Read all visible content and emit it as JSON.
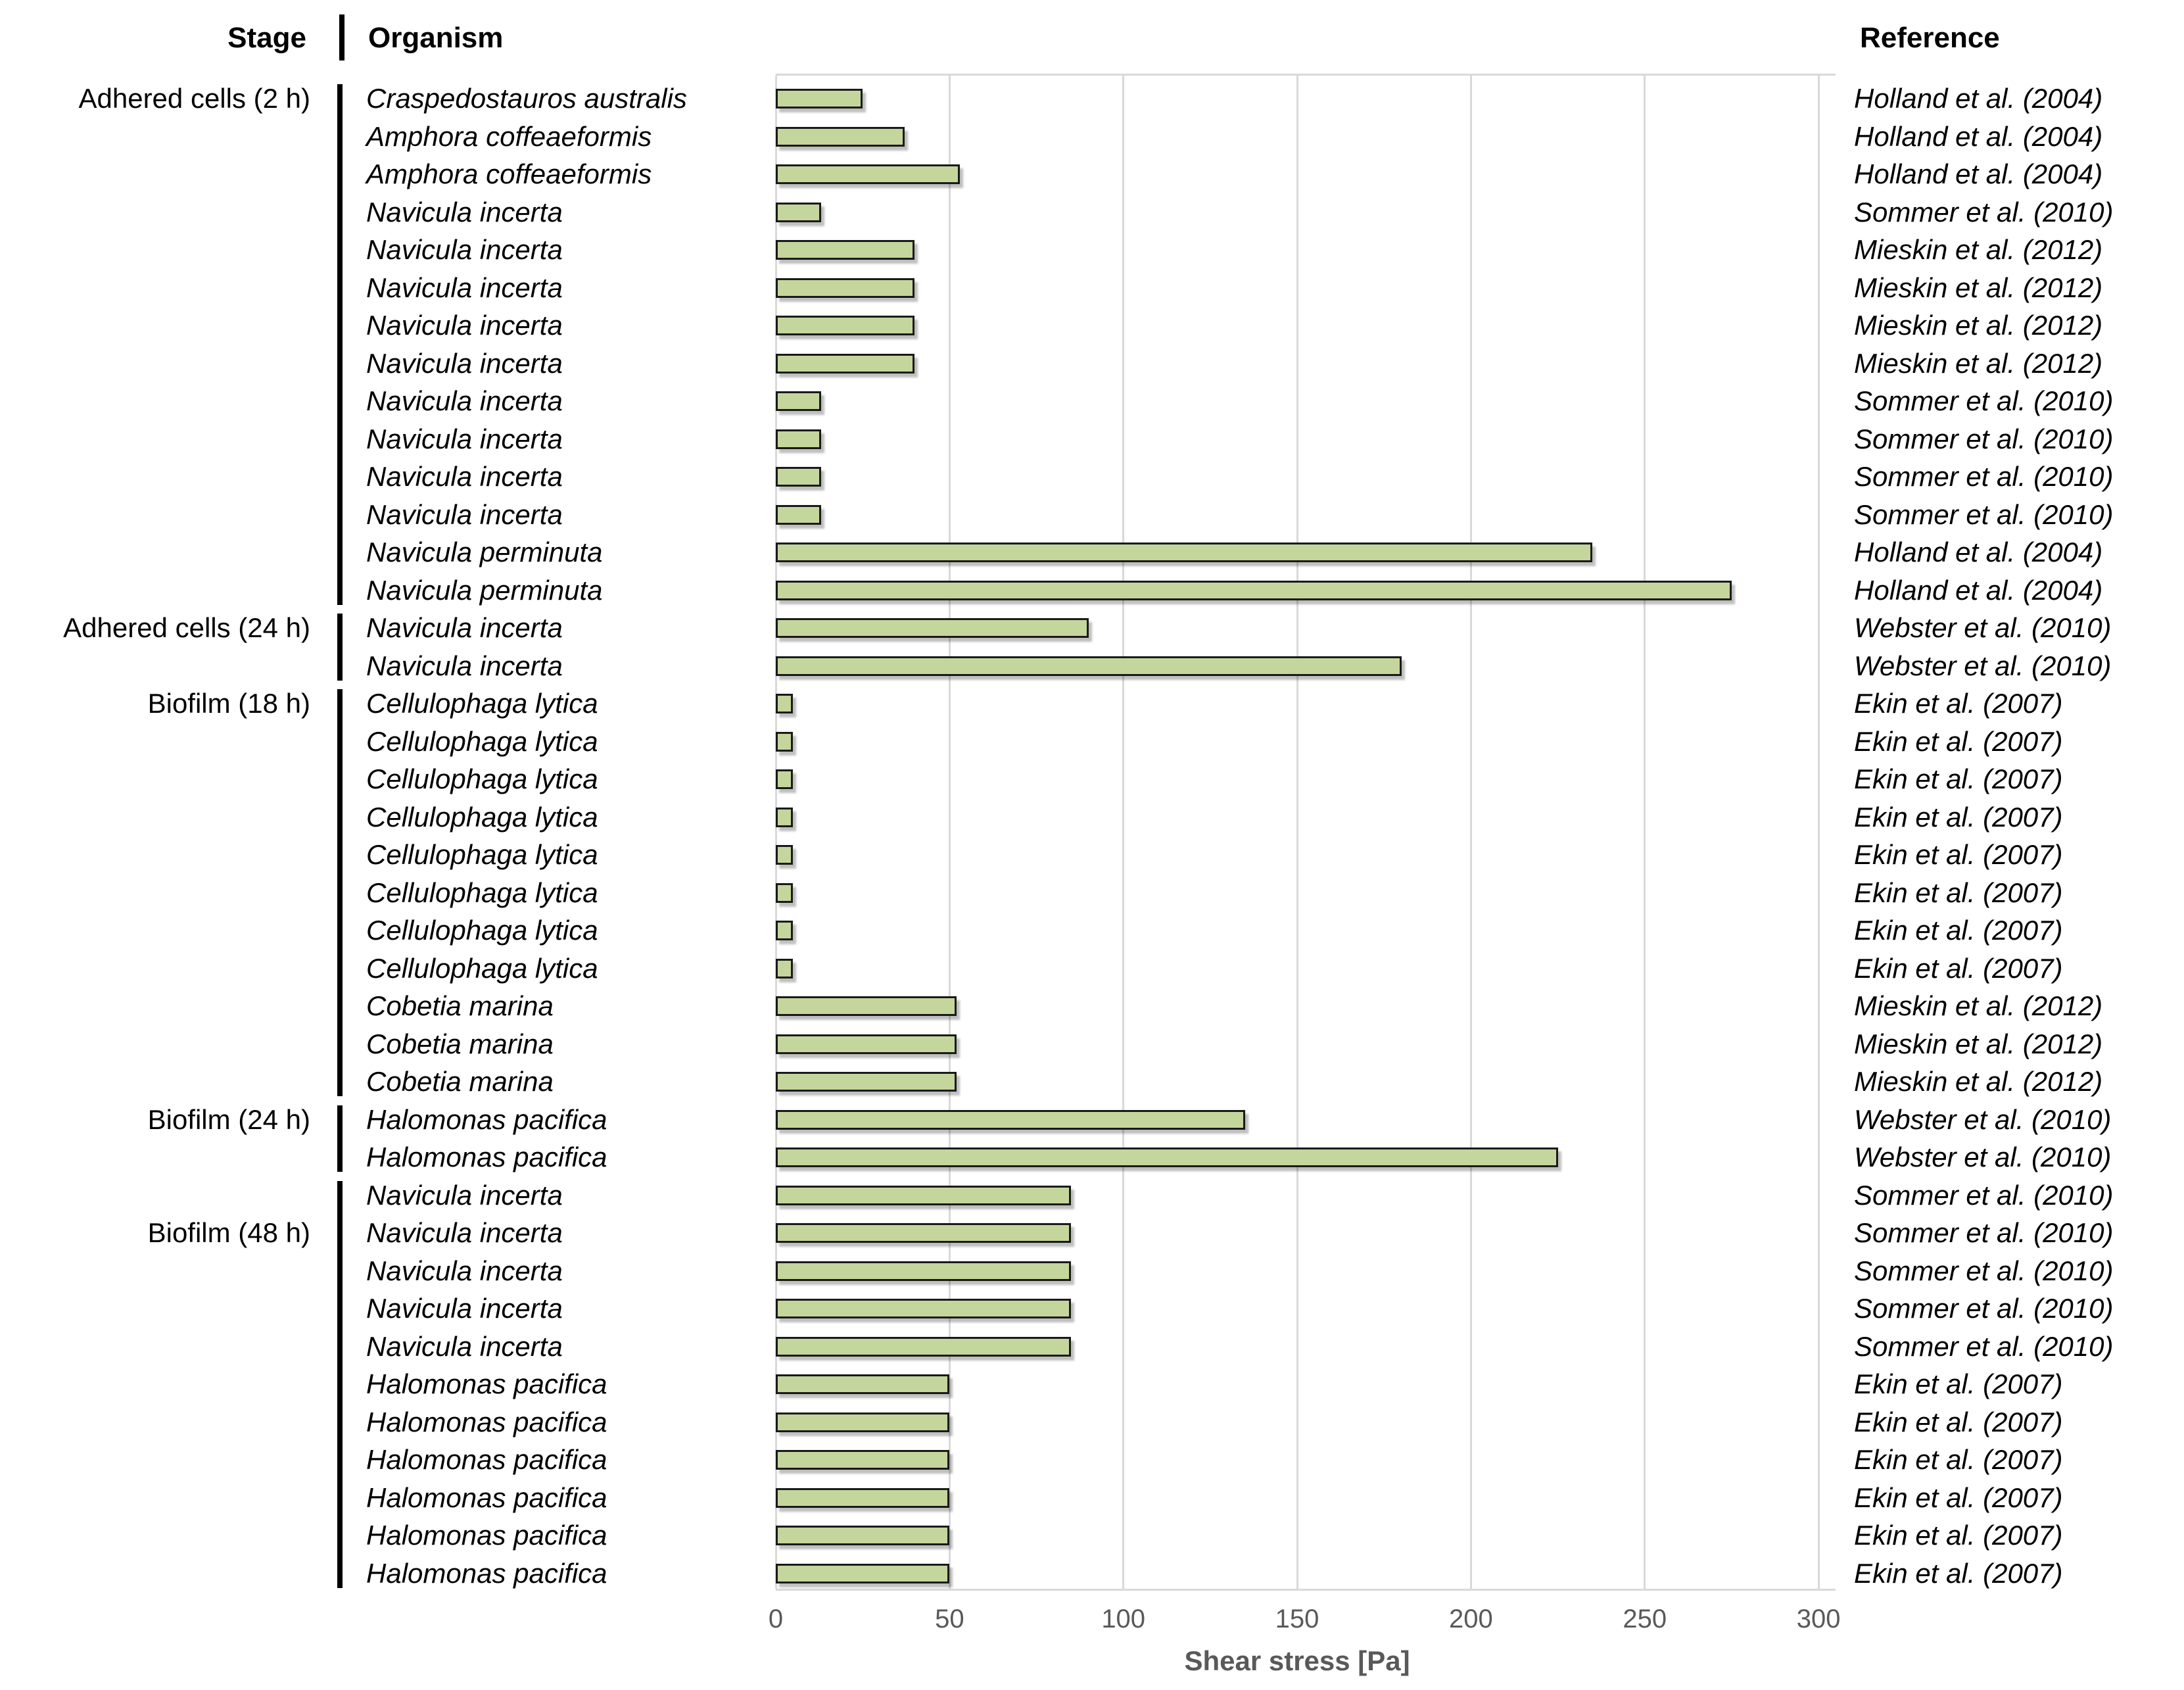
{
  "header": {
    "stage": "Stage",
    "organism": "Organism",
    "reference": "Reference"
  },
  "axis": {
    "title": "Shear stress [Pa]",
    "ticks": [
      0,
      50,
      100,
      150,
      200,
      250,
      300
    ],
    "min": 0,
    "max": 300
  },
  "colors": {
    "bar_fill": "#c4d69c",
    "bar_border": "#1a1a1a",
    "gridline": "#d9d9d9",
    "axis_text": "#595959",
    "text": "#000000"
  },
  "stages": [
    {
      "label": "Adhered cells (2 h)",
      "label_row": 0,
      "first_row": 0,
      "last_row": 13
    },
    {
      "label": "Adhered cells (24 h)",
      "label_row": 14,
      "first_row": 14,
      "last_row": 15
    },
    {
      "label": "Biofilm (18 h)",
      "label_row": 16,
      "first_row": 16,
      "last_row": 26
    },
    {
      "label": "Biofilm (24 h)",
      "label_row": 27,
      "first_row": 27,
      "last_row": 28
    },
    {
      "label": "Biofilm (48 h)",
      "label_row": 30,
      "first_row": 29,
      "last_row": 39
    }
  ],
  "chart_data": {
    "type": "bar",
    "orientation": "horizontal",
    "xlabel": "Shear stress [Pa]",
    "xlim": [
      0,
      300
    ],
    "grid": true,
    "rows": [
      {
        "stage": "Adhered cells (2 h)",
        "organism": "Craspedostauros australis",
        "value": 25,
        "reference": "Holland et al. (2004)"
      },
      {
        "stage": "Adhered cells (2 h)",
        "organism": "Amphora coffeaeformis",
        "value": 37,
        "reference": "Holland et al. (2004)"
      },
      {
        "stage": "Adhered cells (2 h)",
        "organism": "Amphora coffeaeformis",
        "value": 53,
        "reference": "Holland et al. (2004)"
      },
      {
        "stage": "Adhered cells (2 h)",
        "organism": "Navicula incerta",
        "value": 13,
        "reference": "Sommer et al. (2010)"
      },
      {
        "stage": "Adhered cells (2 h)",
        "organism": "Navicula incerta",
        "value": 40,
        "reference": "Mieskin et al. (2012)"
      },
      {
        "stage": "Adhered cells (2 h)",
        "organism": "Navicula incerta",
        "value": 40,
        "reference": "Mieskin et al. (2012)"
      },
      {
        "stage": "Adhered cells (2 h)",
        "organism": "Navicula incerta",
        "value": 40,
        "reference": "Mieskin et al. (2012)"
      },
      {
        "stage": "Adhered cells (2 h)",
        "organism": "Navicula incerta",
        "value": 40,
        "reference": "Mieskin et al. (2012)"
      },
      {
        "stage": "Adhered cells (2 h)",
        "organism": "Navicula incerta",
        "value": 13,
        "reference": "Sommer et al. (2010)"
      },
      {
        "stage": "Adhered cells (2 h)",
        "organism": "Navicula incerta",
        "value": 13,
        "reference": "Sommer et al. (2010)"
      },
      {
        "stage": "Adhered cells (2 h)",
        "organism": "Navicula incerta",
        "value": 13,
        "reference": "Sommer et al. (2010)"
      },
      {
        "stage": "Adhered cells (2 h)",
        "organism": "Navicula incerta",
        "value": 13,
        "reference": "Sommer et al. (2010)"
      },
      {
        "stage": "Adhered cells (2 h)",
        "organism": "Navicula perminuta",
        "value": 235,
        "reference": "Holland et al. (2004)"
      },
      {
        "stage": "Adhered cells (2 h)",
        "organism": "Navicula perminuta",
        "value": 275,
        "reference": "Holland et al. (2004)"
      },
      {
        "stage": "Adhered cells (24 h)",
        "organism": "Navicula incerta",
        "value": 90,
        "reference": "Webster et al. (2010)"
      },
      {
        "stage": "Adhered cells (24 h)",
        "organism": "Navicula incerta",
        "value": 180,
        "reference": "Webster et al. (2010)"
      },
      {
        "stage": "Biofilm (18 h)",
        "organism": "Cellulophaga lytica",
        "value": 5,
        "reference": "Ekin et al. (2007)"
      },
      {
        "stage": "Biofilm (18 h)",
        "organism": "Cellulophaga lytica",
        "value": 5,
        "reference": "Ekin et al. (2007)"
      },
      {
        "stage": "Biofilm (18 h)",
        "organism": "Cellulophaga lytica",
        "value": 5,
        "reference": "Ekin et al. (2007)"
      },
      {
        "stage": "Biofilm (18 h)",
        "organism": "Cellulophaga lytica",
        "value": 5,
        "reference": "Ekin et al. (2007)"
      },
      {
        "stage": "Biofilm (18 h)",
        "organism": "Cellulophaga lytica",
        "value": 5,
        "reference": "Ekin et al. (2007)"
      },
      {
        "stage": "Biofilm (18 h)",
        "organism": "Cellulophaga lytica",
        "value": 5,
        "reference": "Ekin et al. (2007)"
      },
      {
        "stage": "Biofilm (18 h)",
        "organism": "Cellulophaga lytica",
        "value": 5,
        "reference": "Ekin et al. (2007)"
      },
      {
        "stage": "Biofilm (18 h)",
        "organism": "Cellulophaga lytica",
        "value": 5,
        "reference": "Ekin et al. (2007)"
      },
      {
        "stage": "Biofilm (18 h)",
        "organism": "Cobetia marina",
        "value": 52,
        "reference": "Mieskin et al. (2012)"
      },
      {
        "stage": "Biofilm (18 h)",
        "organism": "Cobetia marina",
        "value": 52,
        "reference": "Mieskin et al. (2012)"
      },
      {
        "stage": "Biofilm (18 h)",
        "organism": "Cobetia marina",
        "value": 52,
        "reference": "Mieskin et al. (2012)"
      },
      {
        "stage": "Biofilm (24 h)",
        "organism": "Halomonas pacifica",
        "value": 135,
        "reference": "Webster et al. (2010)"
      },
      {
        "stage": "Biofilm (24 h)",
        "organism": "Halomonas pacifica",
        "value": 225,
        "reference": "Webster et al. (2010)"
      },
      {
        "stage": "Biofilm (48 h)",
        "organism": "Navicula incerta",
        "value": 85,
        "reference": "Sommer et al. (2010)"
      },
      {
        "stage": "Biofilm (48 h)",
        "organism": "Navicula incerta",
        "value": 85,
        "reference": "Sommer et al. (2010)"
      },
      {
        "stage": "Biofilm (48 h)",
        "organism": "Navicula incerta",
        "value": 85,
        "reference": "Sommer et al. (2010)"
      },
      {
        "stage": "Biofilm (48 h)",
        "organism": "Navicula incerta",
        "value": 85,
        "reference": "Sommer et al. (2010)"
      },
      {
        "stage": "Biofilm (48 h)",
        "organism": "Navicula incerta",
        "value": 85,
        "reference": "Sommer et al. (2010)"
      },
      {
        "stage": "Biofilm (48 h)",
        "organism": "Halomonas pacifica",
        "value": 50,
        "reference": "Ekin et al. (2007)"
      },
      {
        "stage": "Biofilm (48 h)",
        "organism": "Halomonas pacifica",
        "value": 50,
        "reference": "Ekin et al. (2007)"
      },
      {
        "stage": "Biofilm (48 h)",
        "organism": "Halomonas pacifica",
        "value": 50,
        "reference": "Ekin et al. (2007)"
      },
      {
        "stage": "Biofilm (48 h)",
        "organism": "Halomonas pacifica",
        "value": 50,
        "reference": "Ekin et al. (2007)"
      },
      {
        "stage": "Biofilm (48 h)",
        "organism": "Halomonas pacifica",
        "value": 50,
        "reference": "Ekin et al. (2007)"
      },
      {
        "stage": "Biofilm (48 h)",
        "organism": "Halomonas pacifica",
        "value": 50,
        "reference": "Ekin et al. (2007)"
      }
    ]
  }
}
